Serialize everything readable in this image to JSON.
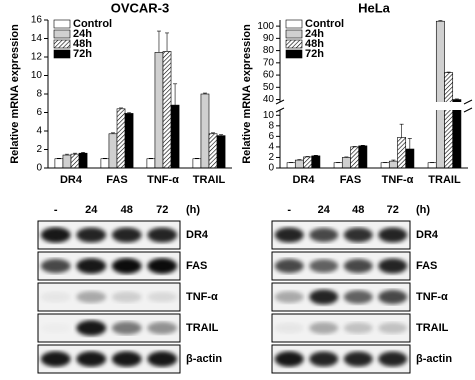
{
  "chart_data": [
    {
      "type": "bar",
      "title": "OVCAR-3",
      "ylabel": "Relative mRNA expression",
      "categories": [
        "DR4",
        "FAS",
        "TNF-α",
        "TRAIL"
      ],
      "series": [
        {
          "name": "Control",
          "color": "#ffffff",
          "values": [
            1,
            1,
            1,
            1
          ],
          "errors": [
            0.05,
            0.05,
            0.05,
            0.05
          ]
        },
        {
          "name": "24h",
          "color": "#d0d0d0",
          "values": [
            1.4,
            3.7,
            12.5,
            8.0
          ],
          "errors": [
            0.1,
            0.1,
            2.3,
            0.1
          ]
        },
        {
          "name": "48h",
          "color": "#ffffff",
          "pattern": "hatch",
          "values": [
            1.5,
            6.4,
            12.6,
            3.7
          ],
          "errors": [
            0.1,
            0.1,
            2.0,
            0.1
          ]
        },
        {
          "name": "72h",
          "color": "#000000",
          "values": [
            1.6,
            5.9,
            6.8,
            3.5
          ],
          "errors": [
            0.1,
            0.1,
            2.3,
            0.1
          ]
        }
      ],
      "ylim": [
        0,
        16
      ],
      "yticks": [
        0,
        2,
        4,
        6,
        8,
        10,
        12,
        14,
        16
      ]
    },
    {
      "type": "bar",
      "title": "HeLa",
      "ylabel": "Relative mRNA expression",
      "categories": [
        "DR4",
        "FAS",
        "TNF-α",
        "TRAIL"
      ],
      "series": [
        {
          "name": "Control",
          "color": "#ffffff",
          "values": [
            1,
            1,
            1,
            1
          ],
          "errors": [
            0.05,
            0.05,
            0.05,
            0.05
          ]
        },
        {
          "name": "24h",
          "color": "#d0d0d0",
          "values": [
            1.5,
            2,
            1.3,
            104
          ],
          "errors": [
            0.1,
            0.1,
            0.2,
            0.5
          ]
        },
        {
          "name": "48h",
          "color": "#ffffff",
          "pattern": "hatch",
          "values": [
            2.1,
            4,
            5.8,
            62
          ],
          "errors": [
            0.1,
            0.1,
            2.5,
            0.5
          ]
        },
        {
          "name": "72h",
          "color": "#000000",
          "values": [
            2.3,
            4.2,
            3.6,
            40
          ],
          "errors": [
            0.1,
            0.1,
            2.0,
            0.5
          ]
        }
      ],
      "ylim": [
        0,
        105
      ],
      "axis_break": [
        11,
        38
      ],
      "yticks": [
        0,
        2,
        4,
        6,
        8,
        10,
        40,
        50,
        60,
        70,
        80,
        90,
        100
      ]
    }
  ],
  "blots": [
    {
      "lanes": [
        "-",
        "24",
        "48",
        "72"
      ],
      "unit": "(h)",
      "rows": [
        "DR4",
        "FAS",
        "TNF-α",
        "TRAIL",
        "β-actin"
      ]
    },
    {
      "lanes": [
        "-",
        "24",
        "48",
        "72"
      ],
      "unit": "(h)",
      "rows": [
        "DR4",
        "FAS",
        "TNF-α",
        "TRAIL",
        "β-actin"
      ]
    }
  ]
}
